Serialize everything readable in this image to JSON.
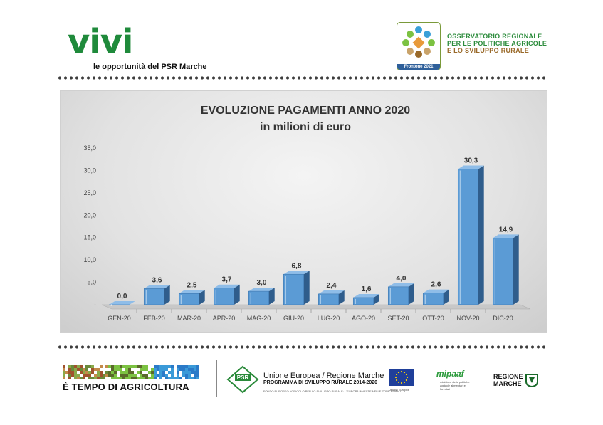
{
  "header": {
    "logo_text": "vivi",
    "logo_sub": "le opportunità del PSR Marche",
    "observatory_badge": "Frontone 2021",
    "observatory_lines": [
      "OSSERVATORIO REGIONALE",
      "PER LE POLITICHE AGRICOLE",
      "E LO SVILUPPO RURALE"
    ]
  },
  "chart_data": {
    "type": "bar",
    "title": "EVOLUZIONE PAGAMENTI ANNO 2020",
    "subtitle": "in milioni di euro",
    "categories": [
      "GEN-20",
      "FEB-20",
      "MAR-20",
      "APR-20",
      "MAG-20",
      "GIU-20",
      "LUG-20",
      "AGO-20",
      "SET-20",
      "OTT-20",
      "NOV-20",
      "DIC-20"
    ],
    "values": [
      0.0,
      3.6,
      2.5,
      3.7,
      3.0,
      6.8,
      2.4,
      1.6,
      4.0,
      2.6,
      30.3,
      14.9
    ],
    "value_labels": [
      "0,0",
      "3,6",
      "2,5",
      "3,7",
      "3,0",
      "6,8",
      "2,4",
      "1,6",
      "4,0",
      "2,6",
      "30,3",
      "14,9"
    ],
    "yticks": [
      "-",
      "5,0",
      "10,0",
      "15,0",
      "20,0",
      "25,0",
      "30,0",
      "35,0"
    ],
    "ylim": [
      0,
      35
    ],
    "xlabel": "",
    "ylabel": "",
    "colors": {
      "bar_front": "#5b9bd5",
      "bar_side": "#2f5d8c",
      "bar_top": "#8fbde8",
      "highlight": "#ffffff"
    }
  },
  "footer": {
    "campaign": "È TEMPO DI AGRICOLTURA",
    "psr_logo": "PSR",
    "psr_title": "Unione Europea / Regione Marche",
    "psr_sub": "PROGRAMMA DI SVILUPPO RURALE 2014-2020",
    "psr_small": "FONDO EUROPEO AGRICOLO PER LO SVILUPPO RURALE: L'EUROPA INVESTE NELLE ZONE RURALI",
    "eu_label": "Unione Europea",
    "mipaaf": "mipaaf",
    "mipaaf_sub": "ministero delle politiche agricole alimentari e forestali",
    "regione": [
      "REGIONE",
      "MARCHE"
    ]
  }
}
